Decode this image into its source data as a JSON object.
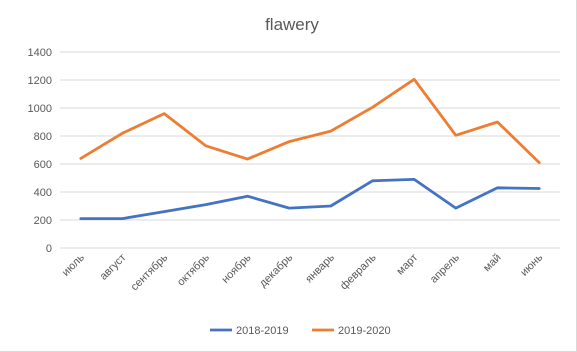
{
  "chart_data": {
    "type": "line",
    "title": "flawery",
    "categories": [
      "июль",
      "август",
      "сентябрь",
      "октябрь",
      "ноябрь",
      "декабрь",
      "январь",
      "февраль",
      "март",
      "апрель",
      "май",
      "июнь"
    ],
    "series": [
      {
        "name": "2018-2019",
        "color": "#4472c4",
        "values": [
          210,
          210,
          260,
          310,
          370,
          285,
          300,
          480,
          490,
          285,
          430,
          425
        ]
      },
      {
        "name": "2019-2020",
        "color": "#ed7d31",
        "values": [
          640,
          820,
          960,
          730,
          635,
          760,
          835,
          1005,
          1205,
          805,
          900,
          610
        ]
      }
    ],
    "ylim": [
      0,
      1400
    ],
    "yticks": [
      "0",
      "200",
      "400",
      "600",
      "800",
      "1000",
      "1200",
      "1400"
    ],
    "grid": true,
    "legend": "bottom"
  }
}
